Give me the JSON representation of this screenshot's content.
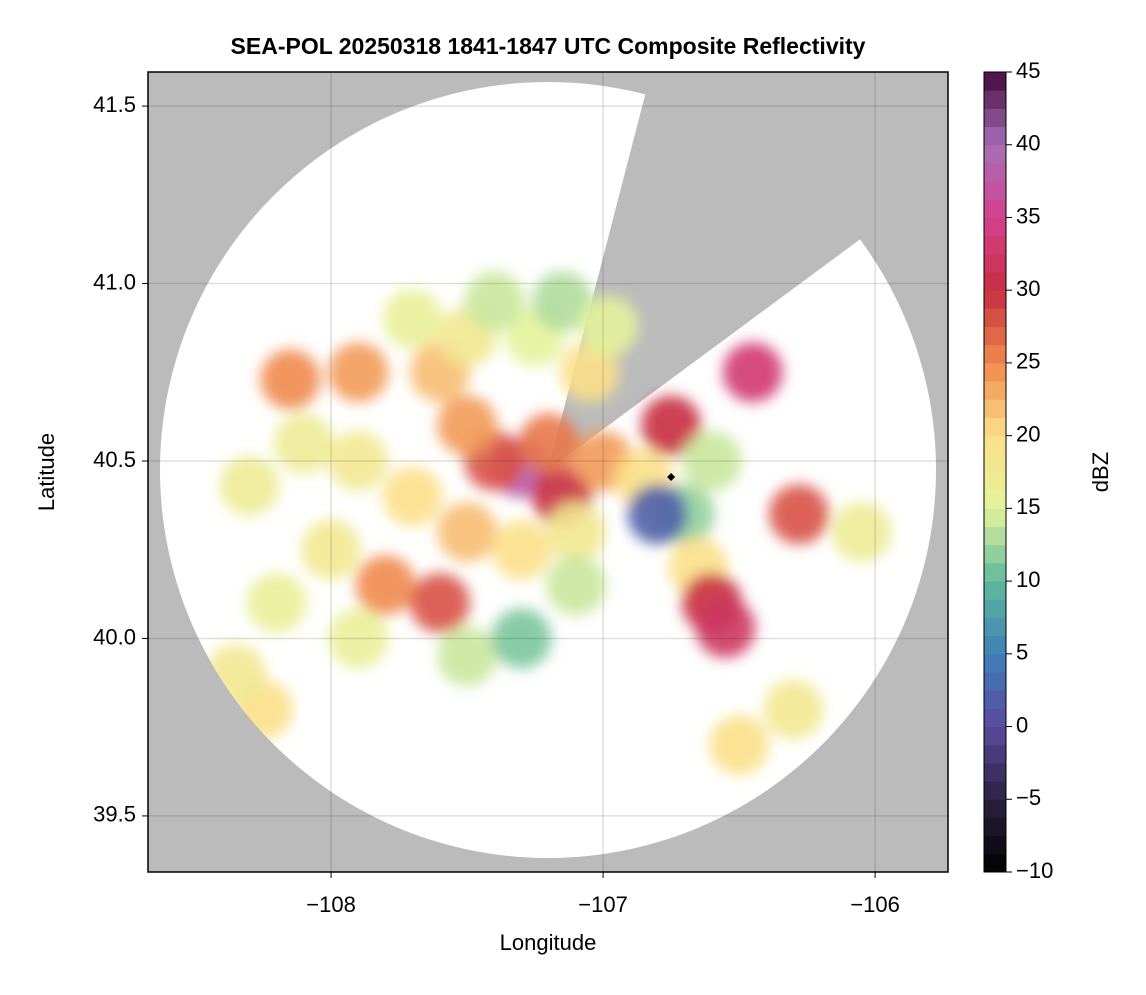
{
  "chart_data": {
    "type": "radar-map",
    "title": "SEA-POL 20250318 1841-1847 UTC Composite Reflectivity",
    "x_label": "Longitude",
    "y_label": "Latitude",
    "colorbar_label": "dBZ",
    "xlim": [
      -108.673,
      -105.732
    ],
    "ylim": [
      39.342,
      41.596
    ],
    "xticks": [
      {
        "value": -108,
        "label": "−108"
      },
      {
        "value": -107,
        "label": "−107"
      },
      {
        "value": -106,
        "label": "−106"
      }
    ],
    "yticks": [
      {
        "value": 39.5,
        "label": "39.5"
      },
      {
        "value": 40.0,
        "label": "40.0"
      },
      40.5,
      {
        "value": 41.0,
        "label": "41.0"
      },
      41.5
    ],
    "clim": [
      -10,
      45
    ],
    "cticks": [
      {
        "value": -10,
        "label": "−10"
      },
      {
        "value": -5,
        "label": "−5"
      },
      0,
      5,
      10,
      15,
      20,
      25,
      30,
      35,
      40,
      45
    ],
    "colormap": [
      "#000000",
      "#2b2140",
      "#5a4a9f",
      "#3f80b9",
      "#5fb99b",
      "#e4f39c",
      "#fbe08a",
      "#f0894c",
      "#c82e40",
      "#d5418f",
      "#a670b8",
      "#45093f"
    ],
    "grid": true,
    "x": [
      -107.3,
      -107.4,
      -107.15,
      -107.5,
      -107.6,
      -107.9,
      -108.15,
      -108.1,
      -107.9,
      -107.7,
      -107.5,
      -107.3,
      -107.1,
      -107.0,
      -106.85,
      -106.75,
      -106.7,
      -106.8,
      -106.65,
      -106.6,
      -106.55,
      -106.45,
      -107.8,
      -107.6,
      -108.0,
      -108.2,
      -107.9,
      -107.5,
      -107.3,
      -107.1,
      -107.5,
      -107.25,
      -107.15,
      -107.4,
      -108.25,
      -108.35,
      -106.5,
      -106.3,
      -106.28,
      -106.6,
      -107.7,
      -108.3,
      -106.05,
      -107.2,
      -107.05,
      -106.98
    ],
    "y": [
      40.48,
      40.5,
      40.4,
      40.6,
      40.75,
      40.75,
      40.73,
      40.55,
      40.5,
      40.4,
      40.3,
      40.25,
      40.3,
      40.5,
      40.45,
      40.6,
      40.35,
      40.35,
      40.2,
      40.1,
      40.03,
      40.75,
      40.15,
      40.1,
      40.25,
      40.1,
      40.0,
      39.95,
      40.0,
      40.15,
      40.85,
      40.85,
      40.95,
      40.95,
      39.8,
      39.9,
      39.7,
      39.8,
      40.35,
      40.5,
      40.9,
      40.43,
      40.3,
      40.55,
      40.75,
      40.88
    ],
    "values": [
      38,
      28,
      30,
      24,
      22,
      24,
      25,
      17,
      18,
      20,
      22,
      20,
      18,
      24,
      20,
      30,
      12,
      2,
      20,
      30,
      32,
      33,
      25,
      28,
      18,
      16,
      16,
      14,
      11,
      14,
      18,
      15,
      13,
      14,
      20,
      18,
      20,
      18,
      28,
      14,
      16,
      17,
      17,
      26,
      20,
      15
    ],
    "marker": {
      "x": -106.75,
      "y": 40.455
    }
  }
}
